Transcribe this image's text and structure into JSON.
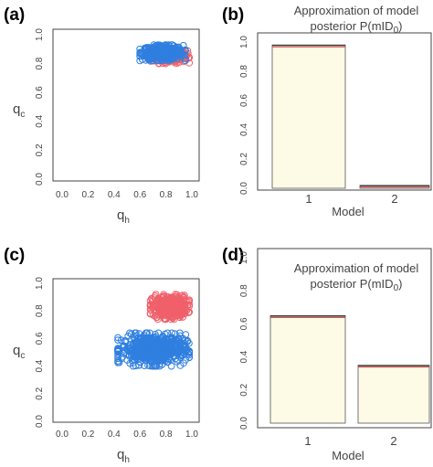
{
  "panels": [
    {
      "id": "a",
      "label": "(a)",
      "ylabel_main": "q",
      "ylabel_sub": "c",
      "xlabel_main": "q",
      "xlabel_sub": "h"
    },
    {
      "id": "b",
      "label": "(b)",
      "title_line1": "Approximation of model",
      "title_line2": "posterior P(mID",
      "title_sub": "0",
      "title_close": ")",
      "xlabel": "Model"
    },
    {
      "id": "c",
      "label": "(c)",
      "ylabel_main": "q",
      "ylabel_sub": "c",
      "xlabel_main": "q",
      "xlabel_sub": "h"
    },
    {
      "id": "d",
      "label": "(d)",
      "title_line1": "Approximation of model",
      "title_line2": "posterior P(mID",
      "title_sub": "0",
      "title_close": ")",
      "xlabel": "Model"
    }
  ],
  "chart_data": [
    {
      "type": "scatter",
      "panel": "a",
      "xlim": [
        0,
        1
      ],
      "ylim": [
        0,
        1
      ],
      "xticks": [
        "0.0",
        "0.2",
        "0.4",
        "0.6",
        "0.8",
        "1.0"
      ],
      "yticks": [
        "0.0",
        "0.2",
        "0.4",
        "0.6",
        "0.8",
        "1.0"
      ],
      "grid": false,
      "series": [
        {
          "color": "#f0606a",
          "cluster": {
            "x_range": [
              0.66,
              0.98
            ],
            "y_range": [
              0.8,
              0.9
            ],
            "count": 260
          }
        },
        {
          "color": "#2f7fe0",
          "cluster": {
            "x_range": [
              0.6,
              0.95
            ],
            "y_range": [
              0.82,
              0.93
            ],
            "count": 420
          }
        }
      ]
    },
    {
      "type": "bar",
      "panel": "b",
      "categories": [
        "1",
        "2"
      ],
      "values": [
        0.98,
        0.02
      ],
      "ylim": [
        0,
        1.0
      ],
      "yticks": [
        "0.0",
        "0.2",
        "0.4",
        "0.6",
        "0.8",
        "1.0"
      ],
      "bar_color": "#fdfae6",
      "top_line_colors": [
        "#333333",
        "#d04040"
      ]
    },
    {
      "type": "scatter",
      "panel": "c",
      "xlim": [
        0,
        1
      ],
      "ylim": [
        0,
        1
      ],
      "xticks": [
        "0.0",
        "0.2",
        "0.4",
        "0.6",
        "0.8",
        "1.0"
      ],
      "yticks": [
        "0.0",
        "0.2",
        "0.4",
        "0.6",
        "0.8",
        "1.0"
      ],
      "grid": false,
      "series": [
        {
          "color": "#f0606a",
          "cluster": {
            "x_range": [
              0.68,
              0.98
            ],
            "y_range": [
              0.74,
              0.92
            ],
            "count": 380
          }
        },
        {
          "color": "#2f7fe0",
          "cluster": {
            "x_range": [
              0.43,
              0.98
            ],
            "y_range": [
              0.4,
              0.64
            ],
            "count": 560
          }
        }
      ]
    },
    {
      "type": "bar",
      "panel": "d",
      "categories": [
        "1",
        "2"
      ],
      "values": [
        0.65,
        0.35
      ],
      "ylim": [
        0,
        1.0
      ],
      "yticks": [
        "0.0",
        "0.2",
        "0.4",
        "0.6",
        "0.8",
        "1.0"
      ],
      "bar_color": "#fdfae6",
      "top_line_colors": [
        "#333333",
        "#d04040"
      ]
    }
  ]
}
